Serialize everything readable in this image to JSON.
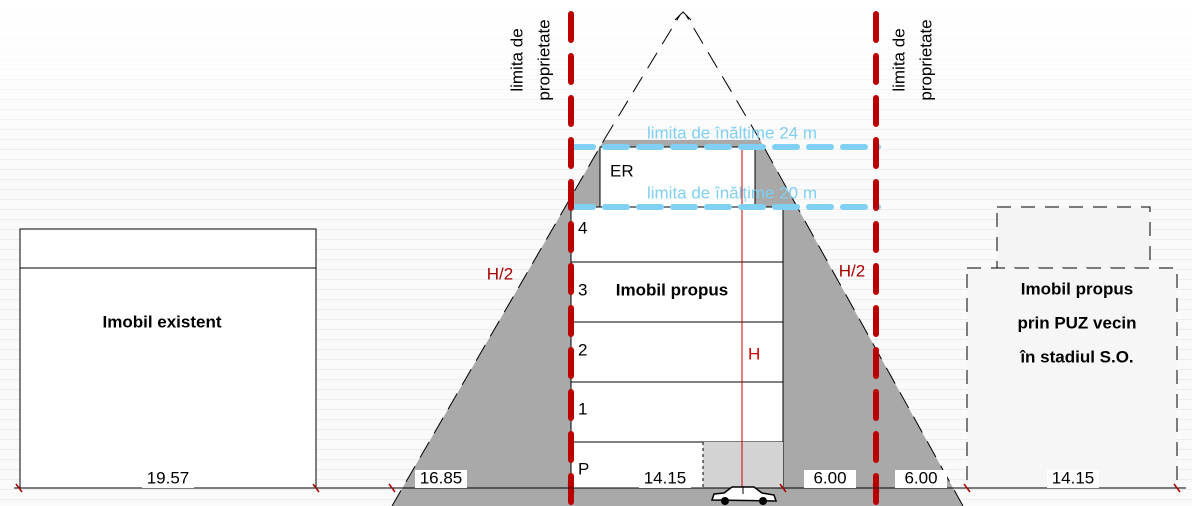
{
  "property_limit": {
    "line1": "limita de",
    "line2": "proprietate"
  },
  "height_limits": [
    "limita de înălțime 24 m",
    "limita de înălțime 20 m"
  ],
  "proposed": {
    "name": "Imobil propus",
    "floors": [
      "ER",
      "4",
      "3",
      "2",
      "1",
      "P"
    ],
    "height": "H"
  },
  "half_height": "H/2",
  "existing": {
    "name": "Imobil existent"
  },
  "neighbor": {
    "lines": [
      "Imobil propus",
      "prin PUZ vecin",
      "în stadiul S.O."
    ]
  },
  "dimensions": [
    "19.57",
    "16.85",
    "14.15",
    "6.00",
    "6.00",
    "14.15"
  ]
}
